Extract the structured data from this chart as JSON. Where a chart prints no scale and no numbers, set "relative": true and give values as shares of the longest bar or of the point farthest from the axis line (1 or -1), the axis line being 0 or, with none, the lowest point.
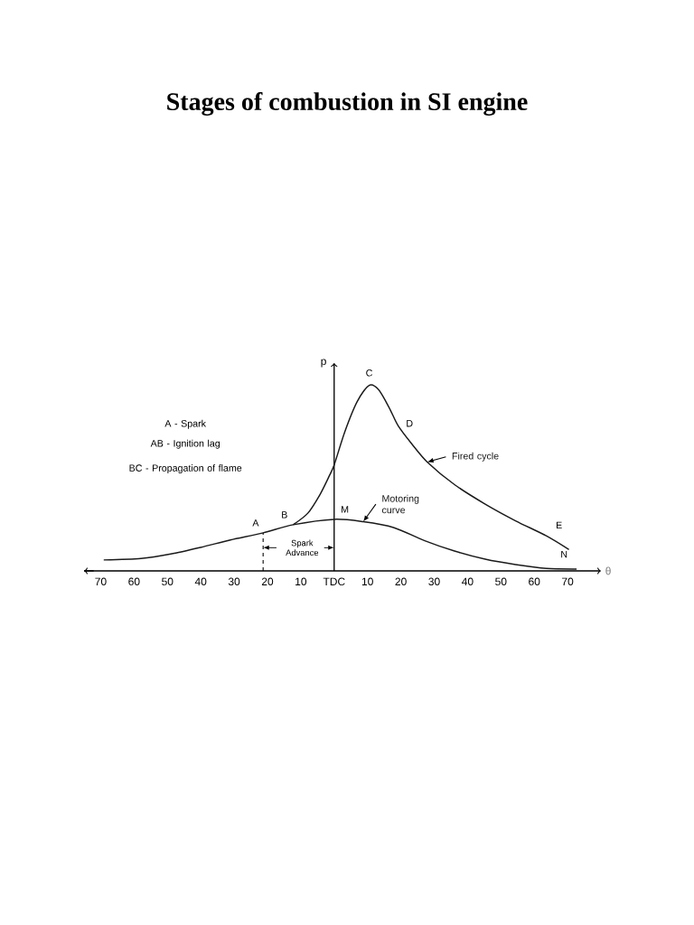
{
  "chart_data": {
    "type": "line",
    "title": "Stages of combustion in SI engine",
    "xlabel": "θ",
    "ylabel": "p",
    "relative": true,
    "xlim": [
      -75,
      80
    ],
    "xticks": [
      {
        "value": -70,
        "label": "70"
      },
      {
        "value": -60,
        "label": "60"
      },
      {
        "value": -50,
        "label": "50"
      },
      {
        "value": -40,
        "label": "40"
      },
      {
        "value": -30,
        "label": "30"
      },
      {
        "value": -20,
        "label": "20"
      },
      {
        "value": -10,
        "label": "10"
      },
      {
        "value": 0,
        "label": "TDC"
      },
      10,
      20,
      30,
      40,
      50,
      60,
      70
    ],
    "series": [
      {
        "name": "Motoring curve",
        "color": "#1a1a1a",
        "x": [
          -69.1,
          -57.9,
          -49,
          -40,
          -31.1,
          -21.3,
          -12.3,
          0,
          8.7,
          17.8,
          27,
          36.1,
          45.3,
          54.4,
          63.6,
          72.7
        ],
        "values": [
          0.059,
          0.067,
          0.091,
          0.127,
          0.167,
          0.205,
          0.249,
          0.278,
          0.265,
          0.234,
          0.164,
          0.107,
          0.063,
          0.034,
          0.013,
          0.01
        ]
      },
      {
        "name": "Fired cycle",
        "color": "#1a1a1a",
        "x": [
          -12.3,
          -7.9,
          -4.3,
          -1.6,
          0,
          3.2,
          6.9,
          10.5,
          13.3,
          16.5,
          19.2,
          23.3,
          27.9,
          36.1,
          45.3,
          54.4,
          63.6,
          70.4
        ],
        "values": [
          0.249,
          0.311,
          0.41,
          0.507,
          0.571,
          0.75,
          0.912,
          1,
          0.977,
          0.88,
          0.782,
          0.684,
          0.587,
          0.465,
          0.36,
          0.27,
          0.189,
          0.115
        ]
      }
    ],
    "ref_lines": [
      {
        "axis": "x",
        "value": -21.3,
        "line_style": "dashed"
      }
    ],
    "annotations": [
      "A - Spark",
      "AB - Ignition lag",
      "BC - Propagation of flame",
      "Spark Advance",
      {
        "text": "A",
        "x": -21.3,
        "y": 0.205
      },
      {
        "text": "B",
        "x": -12.3,
        "y": 0.249
      },
      {
        "text": "C",
        "x": 10.5,
        "y": 1
      },
      {
        "text": "D",
        "x": 19.2,
        "y": 0.782
      },
      {
        "text": "M",
        "x": 0,
        "y": 0.278
      },
      {
        "text": "E",
        "x": 70.4,
        "y": 0.115
      },
      {
        "text": "N",
        "x": 72.7,
        "y": 0.01
      }
    ]
  }
}
